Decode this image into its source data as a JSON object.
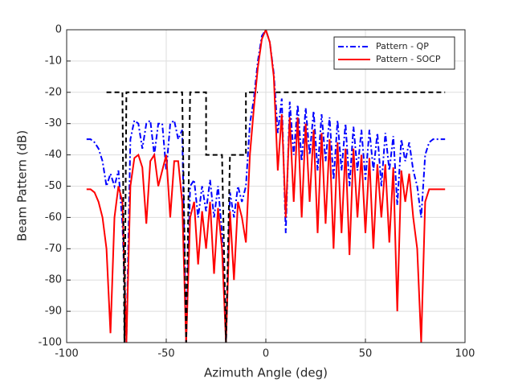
{
  "chart_data": {
    "type": "line",
    "x_label": "Azimuth Angle (deg)",
    "y_label": "Beam Pattern (dB)",
    "xlim": [
      -100,
      100
    ],
    "xticks": [
      -100,
      -50,
      0,
      50,
      100
    ],
    "ylim": [
      -100,
      0
    ],
    "yticks": [
      0,
      -10,
      -20,
      -30,
      -40,
      -50,
      -60,
      -70,
      -80,
      -90,
      -100
    ],
    "grid": true,
    "legend": "upper right",
    "series": [
      {
        "name": "Pattern - QP",
        "color": "#0000ff",
        "line_style": "dashdot",
        "x": [
          -90,
          -88,
          -86,
          -84,
          -82,
          -80,
          -78,
          -76,
          -74,
          -72,
          -70,
          -68,
          -66,
          -64,
          -62,
          -60,
          -58,
          -56,
          -54,
          -52,
          -50,
          -48,
          -46,
          -44,
          -42,
          -40,
          -38,
          -36,
          -34,
          -32,
          -30,
          -28,
          -26,
          -24,
          -22,
          -20,
          -18,
          -16,
          -14,
          -12,
          -10,
          -8,
          -6,
          -4,
          -2,
          0,
          2,
          4,
          6,
          8,
          10,
          12,
          14,
          16,
          18,
          20,
          22,
          24,
          26,
          28,
          30,
          32,
          34,
          36,
          38,
          40,
          42,
          44,
          46,
          48,
          50,
          52,
          54,
          56,
          58,
          60,
          62,
          64,
          66,
          68,
          70,
          72,
          74,
          76,
          78,
          80,
          82,
          84,
          86,
          88,
          90
        ],
        "values": [
          -35,
          -35,
          -36,
          -38,
          -42,
          -50,
          -46,
          -50,
          -45,
          -62,
          -100,
          -35,
          -29,
          -30,
          -38,
          -30,
          -29,
          -40,
          -30,
          -30,
          -45,
          -30,
          -29,
          -35,
          -32,
          -100,
          -50,
          -48,
          -60,
          -50,
          -58,
          -48,
          -60,
          -50,
          -65,
          -100,
          -52,
          -60,
          -50,
          -55,
          -50,
          -30,
          -22,
          -10,
          -2,
          0,
          -4,
          -14,
          -33,
          -22,
          -65,
          -23,
          -40,
          -24,
          -42,
          -25,
          -40,
          -26,
          -45,
          -27,
          -42,
          -28,
          -48,
          -29,
          -45,
          -30,
          -50,
          -31,
          -45,
          -32,
          -48,
          -32,
          -45,
          -33,
          -50,
          -33,
          -45,
          -34,
          -56,
          -35,
          -42,
          -36,
          -45,
          -50,
          -60,
          -40,
          -36,
          -35,
          -35,
          -35,
          -35
        ]
      },
      {
        "name": "Pattern - SOCP",
        "color": "#ff0000",
        "line_style": "solid",
        "x": [
          -90,
          -88,
          -86,
          -84,
          -82,
          -80,
          -78,
          -76,
          -74,
          -72,
          -70,
          -68,
          -66,
          -64,
          -62,
          -60,
          -58,
          -56,
          -54,
          -52,
          -50,
          -48,
          -46,
          -44,
          -42,
          -40,
          -38,
          -36,
          -34,
          -32,
          -30,
          -28,
          -26,
          -24,
          -22,
          -20,
          -18,
          -16,
          -14,
          -12,
          -10,
          -8,
          -6,
          -4,
          -2,
          0,
          2,
          4,
          6,
          8,
          10,
          12,
          14,
          16,
          18,
          20,
          22,
          24,
          26,
          28,
          30,
          32,
          34,
          36,
          38,
          40,
          42,
          44,
          46,
          48,
          50,
          52,
          54,
          56,
          58,
          60,
          62,
          64,
          66,
          68,
          70,
          72,
          74,
          76,
          78,
          80,
          82,
          84,
          86,
          88,
          90
        ],
        "values": [
          -51,
          -51,
          -52,
          -55,
          -60,
          -70,
          -97,
          -60,
          -50,
          -55,
          -100,
          -50,
          -41,
          -40,
          -44,
          -62,
          -42,
          -40,
          -50,
          -45,
          -40,
          -60,
          -42,
          -42,
          -55,
          -100,
          -60,
          -55,
          -75,
          -58,
          -70,
          -55,
          -78,
          -57,
          -70,
          -100,
          -58,
          -80,
          -55,
          -60,
          -68,
          -40,
          -25,
          -12,
          -3,
          0,
          -4,
          -15,
          -45,
          -27,
          -60,
          -28,
          -55,
          -28,
          -60,
          -30,
          -55,
          -32,
          -65,
          -33,
          -62,
          -35,
          -70,
          -36,
          -65,
          -38,
          -72,
          -38,
          -60,
          -40,
          -65,
          -41,
          -70,
          -43,
          -60,
          -43,
          -68,
          -44,
          -90,
          -45,
          -55,
          -46,
          -60,
          -70,
          -100,
          -55,
          -51,
          -51,
          -51,
          -51,
          -51
        ]
      },
      {
        "color": "#000000",
        "line_style": "dashed",
        "x": [
          -80,
          -72,
          -71,
          -70,
          -42,
          -40,
          -38,
          -30,
          -30,
          -22,
          -20,
          -18,
          -10,
          -10,
          -4,
          0,
          5,
          90
        ],
        "values": [
          -20,
          -20,
          -100,
          -20,
          -20,
          -100,
          -20,
          -20,
          -40,
          -40,
          -100,
          -40,
          -40,
          -20,
          -20,
          null,
          -20,
          -20
        ]
      }
    ]
  }
}
